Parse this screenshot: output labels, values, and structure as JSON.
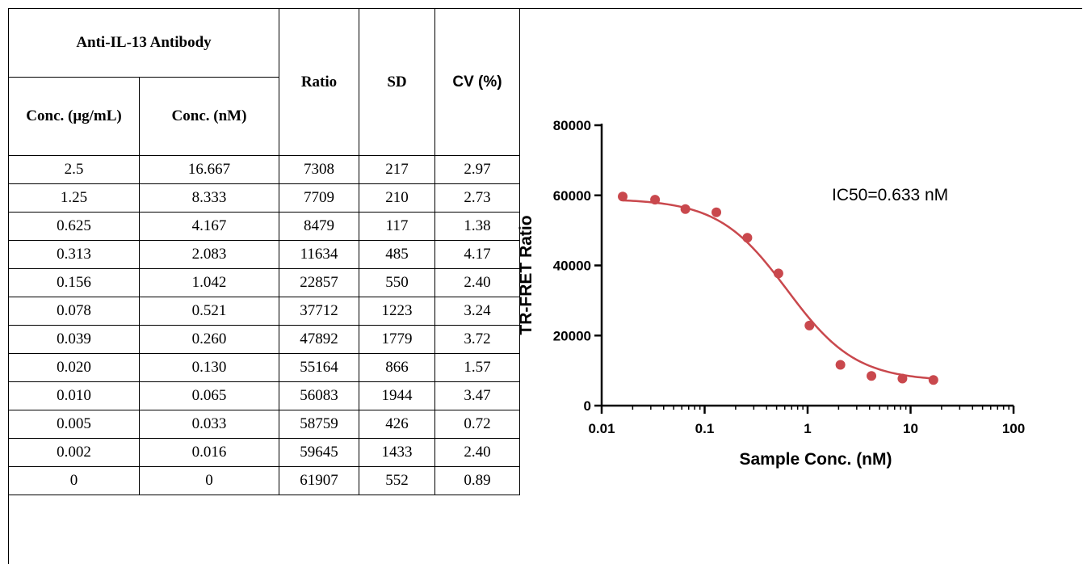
{
  "table": {
    "group_header": "Anti-IL-13 Antibody",
    "col_conc_ug": "Conc. (μg/mL)",
    "col_conc_nm": "Conc. (nM)",
    "col_ratio": "Ratio",
    "col_sd": "SD",
    "col_cv": "CV (%)",
    "rows": [
      [
        "2.5",
        "16.667",
        "7308",
        "217",
        "2.97"
      ],
      [
        "1.25",
        "8.333",
        "7709",
        "210",
        "2.73"
      ],
      [
        "0.625",
        "4.167",
        "8479",
        "117",
        "1.38"
      ],
      [
        "0.313",
        "2.083",
        "11634",
        "485",
        "4.17"
      ],
      [
        "0.156",
        "1.042",
        "22857",
        "550",
        "2.40"
      ],
      [
        "0.078",
        "0.521",
        "37712",
        "1223",
        "3.24"
      ],
      [
        "0.039",
        "0.260",
        "47892",
        "1779",
        "3.72"
      ],
      [
        "0.020",
        "0.130",
        "55164",
        "866",
        "1.57"
      ],
      [
        "0.010",
        "0.065",
        "56083",
        "1944",
        "3.47"
      ],
      [
        "0.005",
        "0.033",
        "58759",
        "426",
        "0.72"
      ],
      [
        "0.002",
        "0.016",
        "59645",
        "1433",
        "2.40"
      ],
      [
        "0",
        "0",
        "61907",
        "552",
        "0.89"
      ]
    ]
  },
  "chart_data": {
    "type": "scatter",
    "xlabel": "Sample Conc. (nM)",
    "ylabel": "TR-FRET Ratio",
    "x_scale": "log",
    "xlim": [
      0.01,
      100
    ],
    "ylim": [
      0,
      80000
    ],
    "x_ticks": [
      0.01,
      0.1,
      1,
      10,
      100
    ],
    "x_tick_labels": [
      "0.01",
      "0.1",
      "1",
      "10",
      "100"
    ],
    "y_ticks": [
      0,
      20000,
      40000,
      60000,
      80000
    ],
    "y_tick_labels": [
      "0",
      "20000",
      "40000",
      "60000",
      "80000"
    ],
    "annotation": "IC50=0.633 nM",
    "points": [
      {
        "x": 0.016,
        "y": 59645
      },
      {
        "x": 0.033,
        "y": 58759
      },
      {
        "x": 0.065,
        "y": 56083
      },
      {
        "x": 0.13,
        "y": 55164
      },
      {
        "x": 0.26,
        "y": 47892
      },
      {
        "x": 0.521,
        "y": 37712
      },
      {
        "x": 1.042,
        "y": 22857
      },
      {
        "x": 2.083,
        "y": 11634
      },
      {
        "x": 4.167,
        "y": 8479
      },
      {
        "x": 8.333,
        "y": 7709
      },
      {
        "x": 16.667,
        "y": 7308
      }
    ],
    "fit": {
      "ic50": 0.633,
      "top": 59000,
      "bottom": 7000,
      "hill": 1.3
    },
    "color": "#c9484d"
  }
}
